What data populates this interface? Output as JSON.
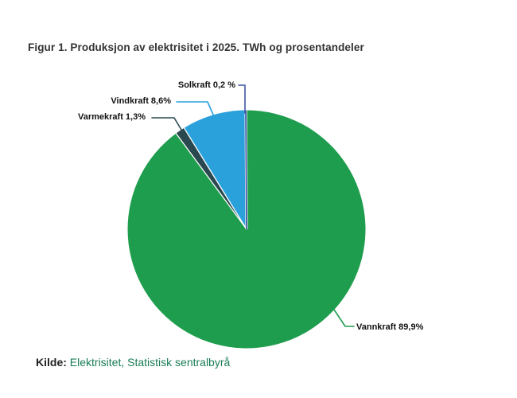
{
  "chart_data": {
    "type": "pie",
    "title": "Figur 1. Produksjon av elektrisitet i 2025. TWh og prosentandeler",
    "direction": "clockwise",
    "start_angle_deg": 0,
    "legend": "none (leader-line labels)",
    "slices": [
      {
        "label": "Vannkraft",
        "value_pct": 89.9,
        "display": "Vannkraft 89,9%",
        "color": "#1f9d4e"
      },
      {
        "label": "Varmekraft",
        "value_pct": 1.3,
        "display": "Varmekraft 1,3%",
        "color": "#294850"
      },
      {
        "label": "Vindkraft",
        "value_pct": 8.6,
        "display": "Vindkraft 8,6%",
        "color": "#2ba1dc"
      },
      {
        "label": "Solkraft",
        "value_pct": 0.2,
        "display": "Solkraft 0,2 %",
        "color": "#4056a4"
      }
    ]
  },
  "source": {
    "prefix": "Kilde:",
    "link_text": "Elektrisitet, Statistisk sentralbyrå",
    "link_color": "#1a7d55"
  }
}
